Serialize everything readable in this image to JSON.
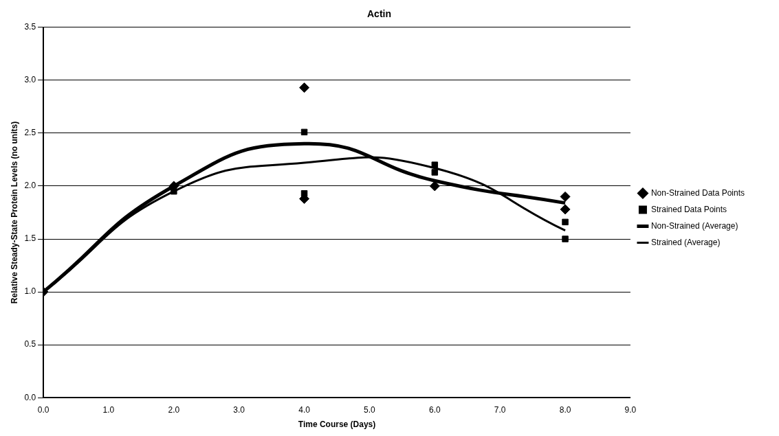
{
  "chart_data": {
    "type": "scatter",
    "title": "Actin",
    "xlabel": "Time Course (Days)",
    "ylabel": "Relative Steady-State Protein Levels (no units)",
    "xlim": [
      0,
      9
    ],
    "xticks": [
      {
        "value": 0,
        "label": "0.0"
      },
      {
        "value": 1,
        "label": "1.0"
      },
      {
        "value": 2,
        "label": "2.0"
      },
      {
        "value": 3,
        "label": "3.0"
      },
      {
        "value": 4,
        "label": "4.0"
      },
      {
        "value": 5,
        "label": "5.0"
      },
      {
        "value": 6,
        "label": "6.0"
      },
      {
        "value": 7,
        "label": "7.0"
      },
      {
        "value": 8,
        "label": "8.0"
      },
      {
        "value": 9,
        "label": "9.0"
      }
    ],
    "ylim": [
      0,
      3.5
    ],
    "yticks": [
      {
        "value": 0,
        "label": "0.0"
      },
      {
        "value": 0.5,
        "label": "0.5"
      },
      {
        "value": 1,
        "label": "1.0"
      },
      {
        "value": 1.5,
        "label": "1.5"
      },
      {
        "value": 2,
        "label": "2.0"
      },
      {
        "value": 2.5,
        "label": "2.5"
      },
      {
        "value": 3,
        "label": "3.0"
      },
      {
        "value": 3.5,
        "label": "3.5"
      }
    ],
    "grid": "y",
    "legend": "right",
    "series": [
      {
        "name": "Non-Strained Data Points",
        "marker": "diamond",
        "color": "#000000",
        "x": [
          0,
          2,
          4,
          4,
          6,
          8,
          8
        ],
        "values": [
          1.0,
          2.0,
          2.93,
          1.88,
          2.0,
          1.9,
          1.78
        ]
      },
      {
        "name": "Strained Data Points",
        "marker": "square",
        "color": "#000000",
        "x": [
          2,
          4,
          4,
          6,
          6,
          8,
          8
        ],
        "values": [
          1.95,
          2.51,
          1.93,
          2.2,
          2.13,
          1.66,
          1.5
        ]
      },
      {
        "name": "Non-Strained (Average)",
        "type": "line",
        "marker": "none",
        "color": "#000000",
        "x": [
          0,
          2,
          4,
          6,
          8
        ],
        "values": [
          1.0,
          2.0,
          2.4,
          2.05,
          1.84
        ]
      },
      {
        "name": "Strained (Average)",
        "type": "line",
        "marker": "none",
        "color": "#000000",
        "x": [
          0,
          2,
          4,
          6,
          8
        ],
        "values": [
          1.0,
          1.95,
          2.22,
          2.17,
          1.58
        ]
      }
    ]
  }
}
